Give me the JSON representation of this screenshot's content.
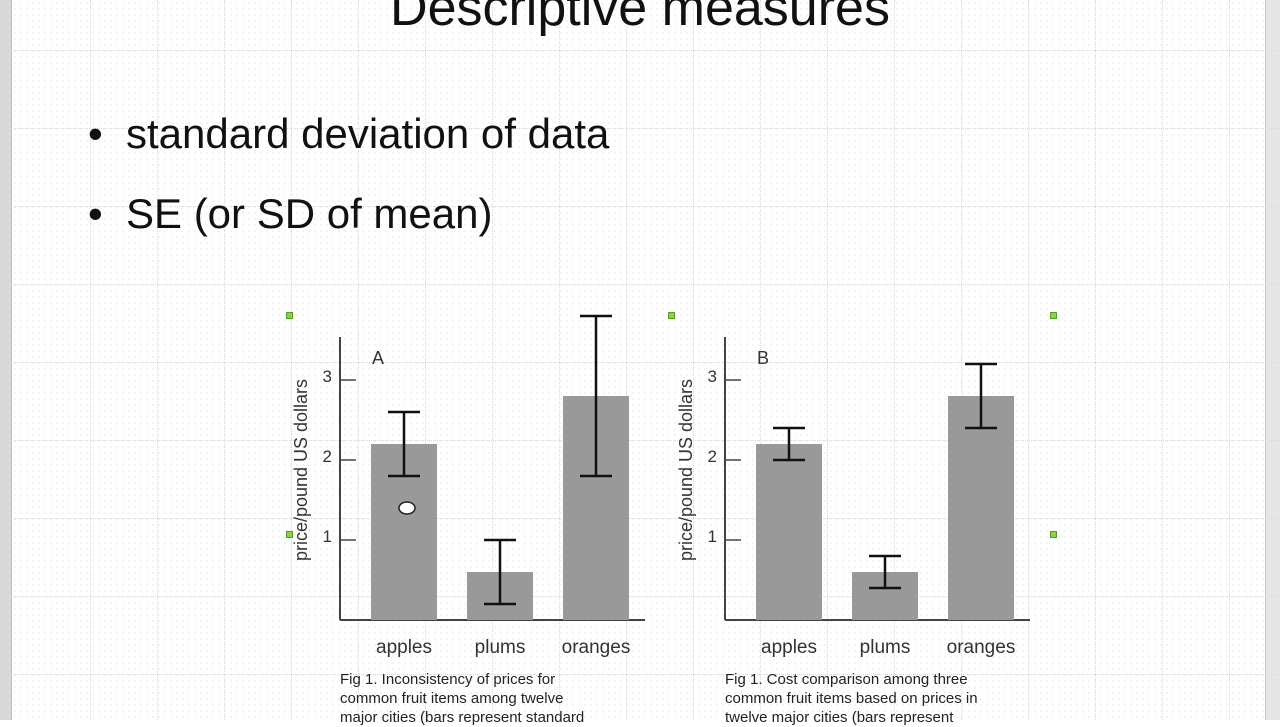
{
  "slide": {
    "title": "Descriptive measures",
    "bullets": [
      "standard deviation of data",
      "SE (or SD of mean)"
    ]
  },
  "chart_data": [
    {
      "type": "bar",
      "panel_label": "A",
      "categories": [
        "apples",
        "plums",
        "oranges"
      ],
      "values": [
        2.2,
        0.6,
        2.8
      ],
      "error_low": [
        1.8,
        0.2,
        1.8
      ],
      "error_high": [
        2.6,
        1.0,
        3.8
      ],
      "ylabel": "price/pound US dollars",
      "yticks": [
        "1",
        "2",
        "3"
      ],
      "ylim": [
        0,
        3.6
      ],
      "bar_color": "#999999",
      "caption": [
        "Fig 1.  Inconsistency of prices for",
        "common fruit items among twelve",
        "major cities (bars represent standard"
      ]
    },
    {
      "type": "bar",
      "panel_label": "B",
      "categories": [
        "apples",
        "plums",
        "oranges"
      ],
      "values": [
        2.2,
        0.6,
        2.8
      ],
      "error_low": [
        2.0,
        0.4,
        2.4
      ],
      "error_high": [
        2.4,
        0.8,
        3.2
      ],
      "ylabel": "price/pound US dollars",
      "yticks": [
        "1",
        "2",
        "3"
      ],
      "ylim": [
        0,
        3.6
      ],
      "bar_color": "#999999",
      "caption": [
        "Fig 1.  Cost comparison among three",
        "common fruit items based on prices in",
        "twelve major cities (bars represent"
      ]
    }
  ]
}
